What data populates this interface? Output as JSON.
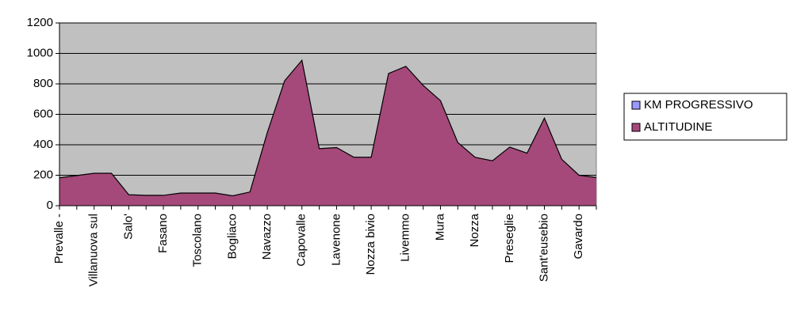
{
  "chart_data": {
    "type": "area",
    "categories": [
      "Prevalle -",
      null,
      "Villanuova sul",
      null,
      "Salo'",
      null,
      "Fasano",
      null,
      "Toscolano",
      null,
      "Bogliaco",
      null,
      "Navazzo",
      null,
      "Capovalle",
      null,
      "Lavenone",
      null,
      "Nozza bivio",
      null,
      "Livemmo",
      null,
      "Mura",
      null,
      "Nozza",
      null,
      "Preseglie",
      null,
      "Sant'eusebio",
      null,
      "Gavardo",
      null
    ],
    "series": [
      {
        "name": "KM PROGRESSIVO",
        "color": "#9999ff"
      },
      {
        "name": "ALTITUDINE",
        "color": "#a5497a",
        "values": [
          183,
          198,
          213,
          213,
          72,
          68,
          68,
          83,
          83,
          83,
          65,
          90,
          480,
          820,
          955,
          375,
          382,
          318,
          318,
          868,
          915,
          790,
          690,
          415,
          318,
          295,
          385,
          345,
          575,
          305,
          200,
          185
        ]
      }
    ],
    "ylim": [
      0,
      1200
    ],
    "yticks": [
      0,
      200,
      400,
      600,
      800,
      1000,
      1200
    ],
    "grid": true,
    "legend": "right"
  }
}
